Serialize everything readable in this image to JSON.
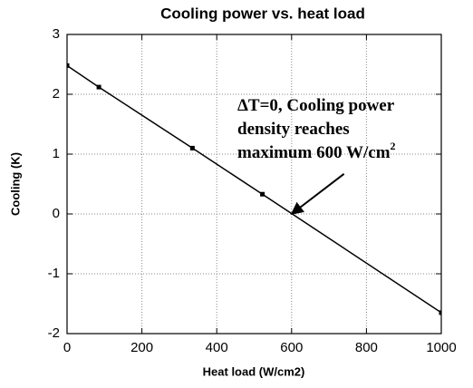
{
  "chart_data": {
    "type": "line",
    "title": "Cooling power vs. heat load",
    "xlabel": "Heat load (W/cm2)",
    "ylabel": "Cooling (K)",
    "x": [
      0,
      85,
      335,
      522,
      1000
    ],
    "series": [
      {
        "name": "Cooling",
        "color": "#000000",
        "values": [
          2.48,
          2.12,
          1.1,
          0.33,
          -1.65
        ]
      }
    ],
    "xlim": [
      0,
      1000
    ],
    "xticks": [
      0,
      200,
      400,
      600,
      800,
      1000
    ],
    "ylim": [
      -2,
      3
    ],
    "yticks": [
      -2,
      -1,
      0,
      1,
      2,
      3
    ],
    "grid": true,
    "annotation": {
      "lines": [
        "ΔT=0, Cooling power",
        "density reaches",
        "maximum 600 W/cm"
      ],
      "sup": "2",
      "xy": [
        600,
        0
      ],
      "xytext": [
        740,
        0.67
      ]
    }
  }
}
